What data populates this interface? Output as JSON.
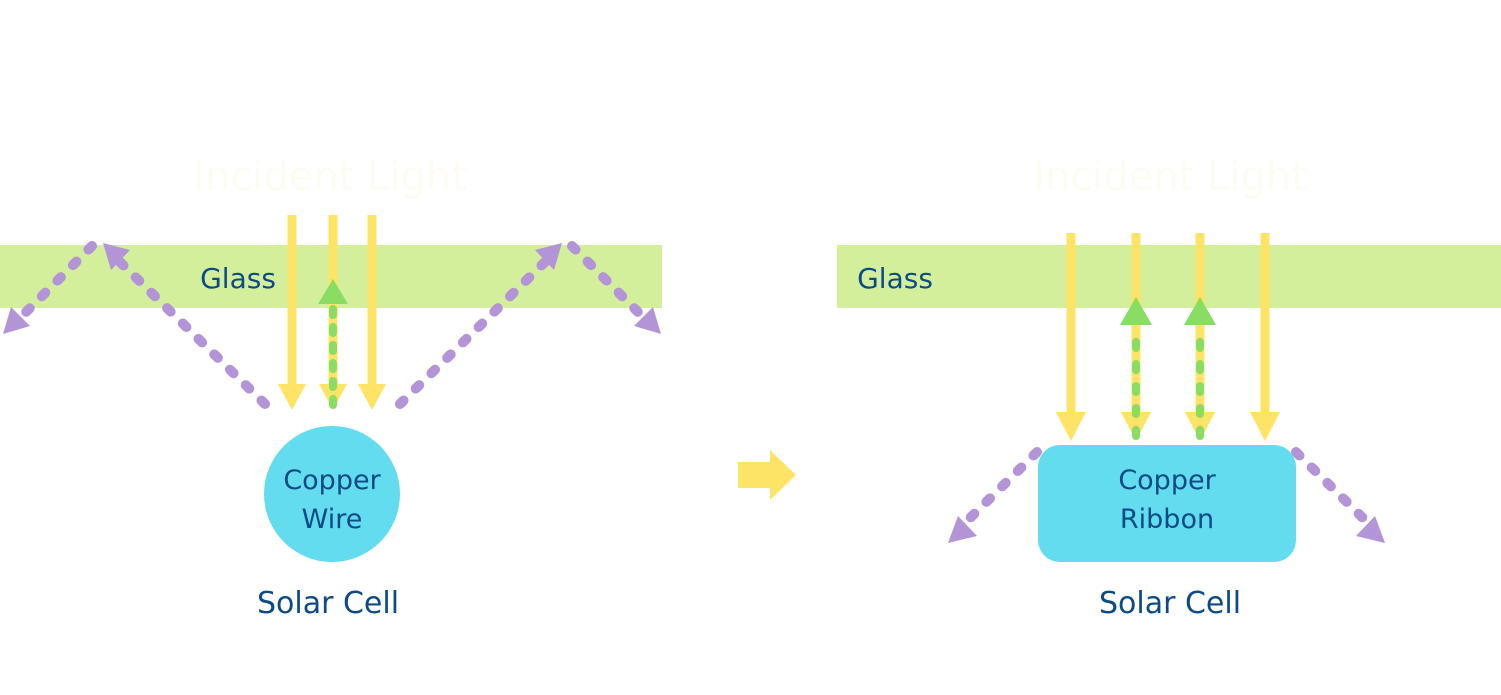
{
  "colors": {
    "glass": "#d4ef9b",
    "incident_light": "#fde466",
    "reflected_light": "#8bdc62",
    "scattered_light": "#b394d6",
    "copper": "#62dcee",
    "label": "#0d4a86",
    "transition_arrow": "#fde466"
  },
  "left": {
    "incident_label": "Incident Light",
    "glass_label": "Glass",
    "conductor_label_line1": "Copper",
    "conductor_label_line2": "Wire",
    "cell_label": "Solar Cell"
  },
  "transition_icon": "right-arrow-icon",
  "right": {
    "incident_label": "Incident Light",
    "glass_label": "Glass",
    "conductor_label_line1": "Copper",
    "conductor_label_line2": "Ribbon",
    "cell_label": "Solar Cell"
  }
}
